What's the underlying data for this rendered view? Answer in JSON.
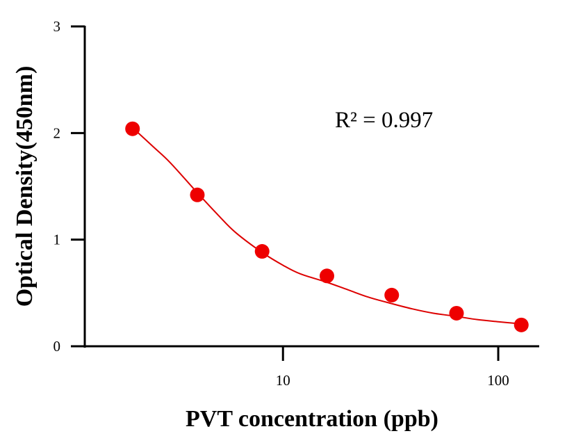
{
  "chart_data": {
    "type": "scatter",
    "xlabel": "PVT concentration (ppb)",
    "ylabel": "Optical Density(450nm)",
    "x_scale": "log",
    "xlim": [
      1.2,
      155
    ],
    "ylim": [
      0,
      3
    ],
    "x_ticks": [
      10,
      100
    ],
    "x_tick_labels": [
      "10",
      "100"
    ],
    "y_ticks": [
      0,
      1,
      2,
      3
    ],
    "y_tick_labels": [
      "0",
      "1",
      "2",
      "3"
    ],
    "grid": false,
    "legend": "none",
    "annotation": "R² = 0.997",
    "series": [
      {
        "color": "#ee0000",
        "marker": "circle",
        "x": [
          2,
          4,
          8,
          16,
          32,
          64,
          128
        ],
        "y": [
          2.04,
          1.42,
          0.89,
          0.66,
          0.48,
          0.31,
          0.2
        ]
      }
    ],
    "fit_curve": {
      "color": "#dd0000",
      "x": [
        2,
        2.5,
        3,
        4,
        5,
        6,
        8,
        10,
        12,
        16,
        20,
        25,
        32,
        40,
        50,
        64,
        80,
        100,
        128
      ],
      "y": [
        2.05,
        1.87,
        1.72,
        1.44,
        1.23,
        1.07,
        0.88,
        0.76,
        0.68,
        0.6,
        0.53,
        0.46,
        0.4,
        0.35,
        0.31,
        0.28,
        0.25,
        0.23,
        0.21
      ]
    }
  }
}
